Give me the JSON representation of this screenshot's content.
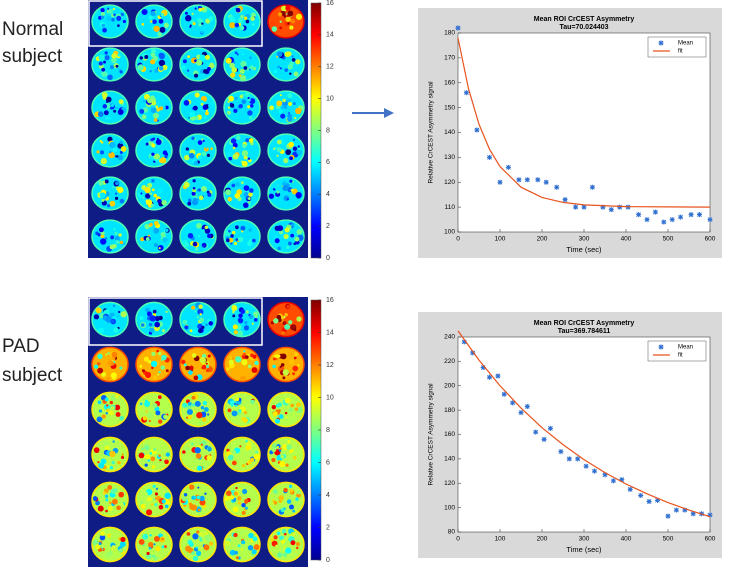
{
  "panels": [
    {
      "label": [
        "Normal",
        "subject"
      ],
      "colorbar": {
        "ylim": [
          0,
          16
        ],
        "yticks": [
          0,
          2,
          4,
          6,
          8,
          10,
          12,
          14,
          16
        ]
      }
    },
    {
      "label": [
        "PAD",
        "subject"
      ],
      "colorbar": {
        "ylim": [
          0,
          16
        ],
        "yticks": [
          0,
          2,
          4,
          6,
          8,
          10,
          12,
          14,
          16
        ]
      }
    }
  ],
  "chart_data": [
    {
      "type": "scatter",
      "title": "Mean ROI CrCEST Asymmetry",
      "subtitle": "Tau=70.024403",
      "xlabel": "Time (sec)",
      "ylabel": "Relative CrCEST Asymmetry signal",
      "xlim": [
        0,
        600
      ],
      "xticks": [
        0,
        100,
        200,
        300,
        400,
        500,
        600
      ],
      "ylim": [
        100,
        180
      ],
      "yticks": [
        100,
        110,
        120,
        130,
        140,
        150,
        160,
        170,
        180
      ],
      "legend": "upper right",
      "series": [
        {
          "name": "Mean",
          "color": "#2f6fd0",
          "x": [
            0,
            20,
            45,
            75,
            100,
            120,
            145,
            165,
            190,
            210,
            235,
            255,
            280,
            300,
            320,
            345,
            365,
            385,
            405,
            430,
            450,
            470,
            490,
            510,
            530,
            555,
            575,
            600
          ],
          "values": [
            182,
            156,
            141,
            130,
            120,
            126,
            121,
            121,
            121,
            120,
            118,
            113,
            110,
            110,
            118,
            110,
            109,
            110,
            110,
            107,
            105,
            108,
            104,
            105,
            106,
            107,
            107,
            105
          ]
        },
        {
          "name": "fit",
          "color": "#e8531f",
          "line": true,
          "x": [
            0,
            25,
            50,
            75,
            100,
            150,
            200,
            250,
            300,
            400,
            500,
            600
          ],
          "values": [
            178,
            157.6,
            143.3,
            133.3,
            126.3,
            118,
            113.9,
            111.9,
            110.9,
            110.2,
            110.1,
            110
          ]
        }
      ]
    },
    {
      "type": "scatter",
      "title": "Mean ROI CrCEST Asymmetry",
      "subtitle": "Tau=369.784611",
      "xlabel": "Time (sec)",
      "ylabel": "Relative CrCEST Asymmetry signal",
      "xlim": [
        0,
        600
      ],
      "xticks": [
        0,
        100,
        200,
        300,
        400,
        500,
        600
      ],
      "ylim": [
        80,
        240
      ],
      "yticks": [
        80,
        100,
        120,
        140,
        160,
        180,
        200,
        220,
        240
      ],
      "legend": "upper right",
      "series": [
        {
          "name": "Mean",
          "color": "#2f6fd0",
          "x": [
            15,
            35,
            60,
            75,
            95,
            110,
            130,
            150,
            165,
            185,
            205,
            220,
            245,
            265,
            285,
            305,
            325,
            350,
            370,
            390,
            410,
            435,
            455,
            475,
            500,
            520,
            540,
            560,
            580,
            600
          ],
          "values": [
            236,
            227,
            215,
            207,
            208,
            193,
            186,
            178,
            183,
            162,
            156,
            165,
            146,
            140,
            140,
            134,
            130,
            127,
            122,
            123,
            115,
            110,
            105,
            106,
            93,
            98,
            98,
            95,
            95,
            94
          ]
        },
        {
          "name": "fit",
          "color": "#e8531f",
          "line": true,
          "x": [
            0,
            50,
            100,
            150,
            200,
            250,
            300,
            350,
            400,
            450,
            500,
            550,
            600
          ],
          "values": [
            245,
            221,
            200,
            181.7,
            165.6,
            151.7,
            139.4,
            128.7,
            119.4,
            111.3,
            104.2,
            98,
            92.6
          ]
        }
      ]
    }
  ]
}
